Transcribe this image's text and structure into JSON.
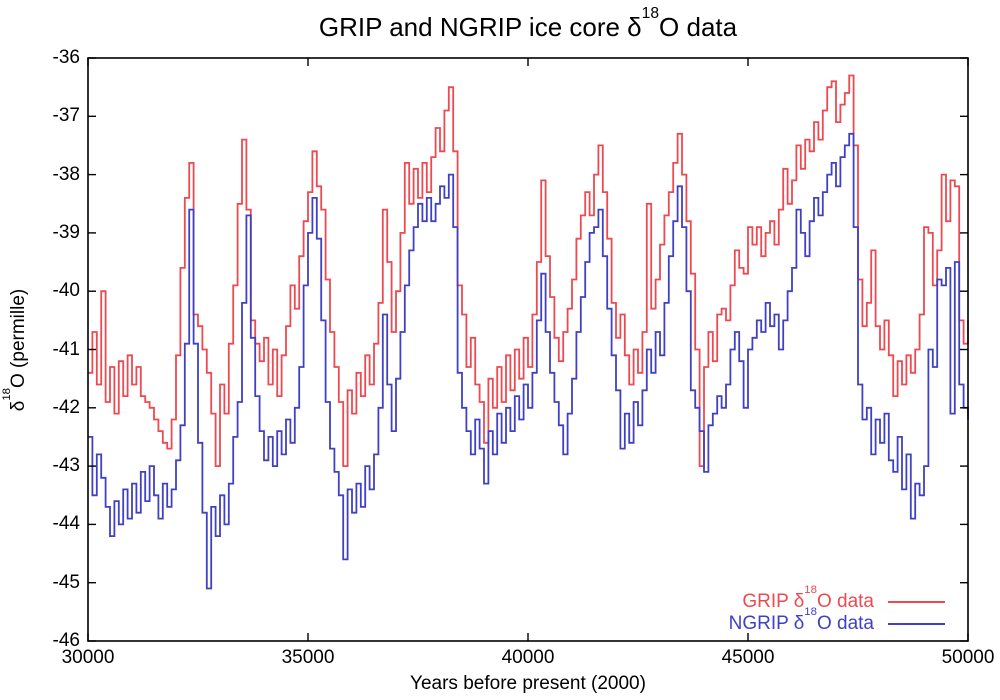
{
  "title": {
    "pre": "GRIP and NGRIP ice core δ",
    "sup": "18",
    "post": "O data"
  },
  "axes": {
    "x": {
      "label": "Years before present (2000)",
      "tick_values": [
        30000,
        35000,
        40000,
        45000,
        50000
      ],
      "tick_labels": [
        "30000",
        "35000",
        "40000",
        "45000",
        "50000"
      ]
    },
    "y": {
      "label_pre": "δ",
      "label_sup": "18",
      "label_post": "O (permille)",
      "tick_values": [
        -36,
        -37,
        -38,
        -39,
        -40,
        -41,
        -42,
        -43,
        -44,
        -45,
        -46
      ],
      "tick_labels": [
        "-36",
        "-37",
        "-38",
        "-39",
        "-40",
        "-41",
        "-42",
        "-43",
        "-44",
        "-45",
        "-46"
      ]
    }
  },
  "legend": {
    "entries": [
      {
        "pre": "GRIP δ",
        "sup": "18",
        "post": "O data",
        "color": "#ec4a50"
      },
      {
        "pre": "NGRIP δ",
        "sup": "18",
        "post": "O data",
        "color": "#4040c4"
      }
    ]
  },
  "colors": {
    "frame": "#000000",
    "grip": "#ec4a50",
    "ngrip": "#4040c4",
    "background": "#ffffff"
  },
  "chart_data": {
    "type": "line",
    "style": "steps",
    "grid": false,
    "legend_position": "inside bottom-right",
    "title": "GRIP and NGRIP ice core δ18O data",
    "xlabel": "Years before present (2000)",
    "ylabel": "δ18O (permille)",
    "xlim": [
      30000,
      50000
    ],
    "ylim": [
      -46,
      -36
    ],
    "x_start": 30000,
    "x_step": 100,
    "series": [
      {
        "name": "GRIP δ18O data",
        "color": "#ec4a50",
        "values": [
          -41.4,
          -40.7,
          -41.6,
          -40.0,
          -41.9,
          -41.3,
          -42.1,
          -41.2,
          -41.8,
          -41.1,
          -41.6,
          -41.3,
          -41.8,
          -41.9,
          -42.0,
          -42.2,
          -42.4,
          -42.6,
          -42.7,
          -42.2,
          -41.1,
          -39.6,
          -38.4,
          -37.8,
          -40.4,
          -40.6,
          -41.0,
          -41.4,
          -42.1,
          -43.0,
          -41.6,
          -42.1,
          -40.9,
          -39.9,
          -38.5,
          -37.4,
          -38.6,
          -40.5,
          -40.9,
          -41.2,
          -40.8,
          -41.6,
          -41.0,
          -41.8,
          -41.1,
          -40.6,
          -39.9,
          -40.3,
          -39.4,
          -38.8,
          -38.3,
          -37.6,
          -38.2,
          -38.6,
          -39.8,
          -40.7,
          -41.3,
          -41.9,
          -43.0,
          -41.7,
          -42.1,
          -41.4,
          -41.8,
          -41.1,
          -41.6,
          -40.9,
          -40.2,
          -38.6,
          -39.5,
          -40.7,
          -40.0,
          -39.0,
          -37.8,
          -38.5,
          -37.9,
          -38.4,
          -37.8,
          -38.3,
          -37.7,
          -37.2,
          -37.6,
          -36.9,
          -36.5,
          -37.6,
          -39.9,
          -40.4,
          -41.3,
          -40.8,
          -41.6,
          -41.9,
          -42.6,
          -41.5,
          -42.0,
          -41.3,
          -41.9,
          -41.1,
          -41.7,
          -41.0,
          -41.5,
          -40.8,
          -41.3,
          -40.4,
          -39.5,
          -38.1,
          -39.4,
          -40.1,
          -40.8,
          -41.2,
          -40.7,
          -40.3,
          -39.8,
          -39.1,
          -38.7,
          -38.3,
          -38.7,
          -38.0,
          -37.5,
          -38.3,
          -39.1,
          -40.2,
          -40.8,
          -40.4,
          -41.1,
          -41.6,
          -41.0,
          -41.4,
          -40.7,
          -38.5,
          -40.3,
          -39.8,
          -39.2,
          -38.7,
          -38.3,
          -37.8,
          -37.3,
          -38.0,
          -38.8,
          -39.7,
          -41.0,
          -43.0,
          -41.3,
          -40.7,
          -41.2,
          -40.4,
          -40.3,
          -40.5,
          -39.9,
          -39.3,
          -39.6,
          -39.7,
          -38.9,
          -39.2,
          -38.9,
          -39.4,
          -39.0,
          -38.8,
          -39.2,
          -38.6,
          -37.9,
          -38.5,
          -38.1,
          -37.5,
          -37.9,
          -37.4,
          -37.6,
          -37.1,
          -37.4,
          -36.9,
          -36.5,
          -36.4,
          -37.1,
          -36.8,
          -36.6,
          -36.3,
          -37.5,
          -39.8,
          -40.6,
          -40.2,
          -39.3,
          -40.6,
          -41.0,
          -40.5,
          -41.1,
          -41.8,
          -41.2,
          -41.6,
          -41.1,
          -41.4,
          -41.0,
          -40.4,
          -38.9,
          -39.0,
          -39.9,
          -39.3,
          -38.0,
          -38.8,
          -38.1,
          -38.2,
          -40.5,
          -40.9,
          -40.5
        ]
      },
      {
        "name": "NGRIP δ18O data",
        "color": "#4040c4",
        "values": [
          -42.5,
          -43.5,
          -42.8,
          -43.2,
          -43.7,
          -44.2,
          -43.6,
          -44.0,
          -43.4,
          -43.9,
          -43.3,
          -43.8,
          -43.1,
          -43.6,
          -43.0,
          -43.5,
          -43.9,
          -43.3,
          -43.7,
          -43.4,
          -42.9,
          -42.3,
          -40.9,
          -38.6,
          -40.9,
          -42.6,
          -43.8,
          -45.1,
          -43.7,
          -44.2,
          -43.5,
          -44.0,
          -43.3,
          -42.5,
          -41.9,
          -40.2,
          -38.7,
          -40.8,
          -41.8,
          -42.4,
          -42.9,
          -42.5,
          -43.0,
          -42.4,
          -42.8,
          -42.2,
          -42.6,
          -42.0,
          -41.3,
          -39.9,
          -39.0,
          -38.4,
          -39.1,
          -40.5,
          -41.9,
          -42.7,
          -43.1,
          -43.5,
          -44.6,
          -43.4,
          -43.8,
          -43.3,
          -43.7,
          -43.0,
          -43.4,
          -42.8,
          -42.0,
          -40.4,
          -41.6,
          -42.4,
          -41.5,
          -40.7,
          -39.9,
          -39.3,
          -38.9,
          -38.5,
          -38.8,
          -38.4,
          -38.8,
          -38.5,
          -38.2,
          -38.4,
          -38.0,
          -38.9,
          -41.4,
          -42.0,
          -42.4,
          -42.8,
          -42.2,
          -42.7,
          -43.3,
          -42.4,
          -42.8,
          -42.1,
          -42.6,
          -42.0,
          -42.4,
          -41.8,
          -42.2,
          -41.6,
          -42.0,
          -41.4,
          -40.5,
          -39.7,
          -40.7,
          -41.4,
          -41.9,
          -42.3,
          -42.8,
          -42.1,
          -41.5,
          -40.7,
          -40.1,
          -39.5,
          -39.0,
          -38.9,
          -38.6,
          -39.4,
          -40.3,
          -41.1,
          -41.7,
          -42.7,
          -42.1,
          -42.6,
          -41.9,
          -42.3,
          -41.7,
          -41.0,
          -41.4,
          -40.7,
          -41.1,
          -40.2,
          -39.4,
          -38.8,
          -38.2,
          -38.9,
          -40.0,
          -41.7,
          -42.0,
          -42.4,
          -43.1,
          -42.3,
          -42.1,
          -41.8,
          -42.0,
          -41.6,
          -41.0,
          -40.7,
          -41.2,
          -42.0,
          -41.0,
          -40.8,
          -40.5,
          -40.7,
          -40.2,
          -40.6,
          -40.4,
          -41.0,
          -40.5,
          -40.0,
          -39.6,
          -38.6,
          -39.0,
          -39.4,
          -38.8,
          -38.4,
          -38.7,
          -38.3,
          -38.0,
          -37.8,
          -38.2,
          -37.7,
          -37.5,
          -37.3,
          -38.9,
          -41.6,
          -42.2,
          -42.0,
          -42.8,
          -42.2,
          -42.6,
          -42.1,
          -42.9,
          -43.1,
          -42.5,
          -43.4,
          -42.8,
          -43.9,
          -43.3,
          -43.5,
          -43.0,
          -41.0,
          -41.3,
          -39.8,
          -39.9,
          -39.6,
          -42.1,
          -39.5,
          -41.6,
          -42.0,
          -42.2
        ]
      }
    ]
  }
}
